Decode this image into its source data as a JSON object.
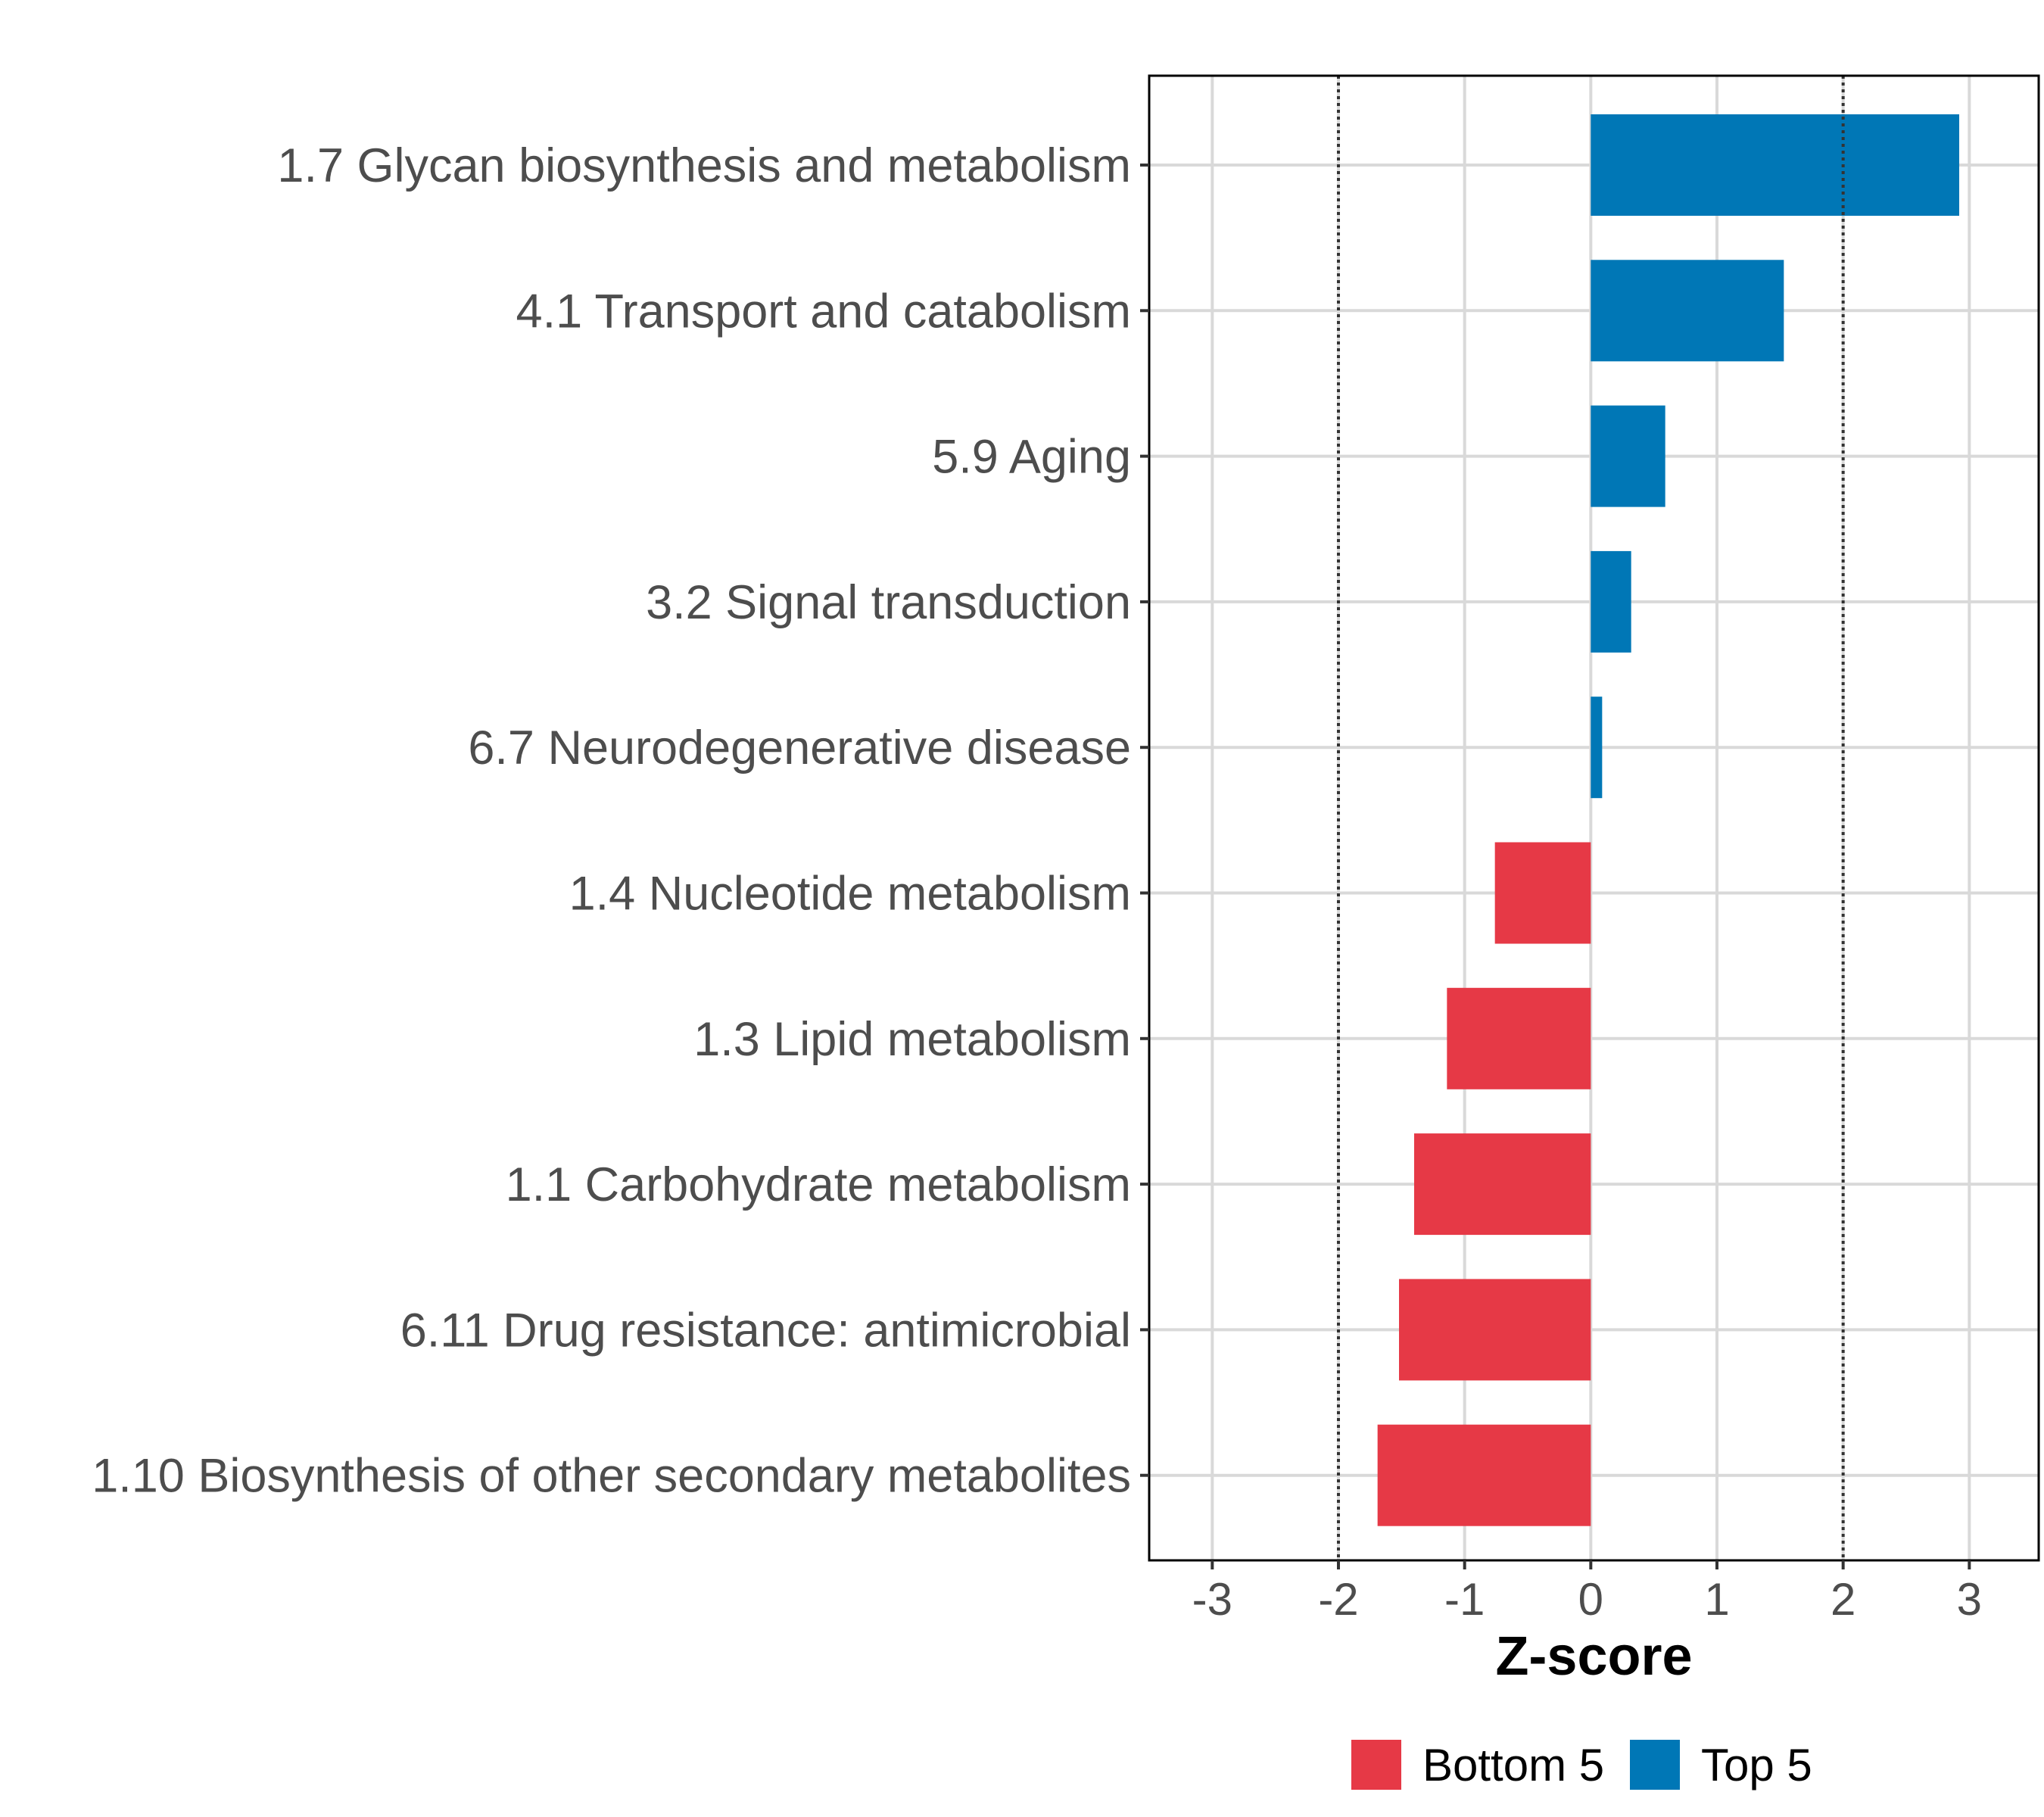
{
  "chart_data": {
    "type": "bar",
    "orientation": "horizontal",
    "categories": [
      "1.7 Glycan biosynthesis and metabolism",
      "4.1 Transport and catabolism",
      "5.9 Aging",
      "3.2 Signal transduction",
      "6.7 Neurodegenerative disease",
      "1.4 Nucleotide metabolism",
      "1.3 Lipid metabolism",
      "1.1 Carbohydrate metabolism",
      "6.11 Drug resistance: antimicrobial",
      "1.10 Biosynthesis of other secondary metabolites"
    ],
    "values": [
      2.92,
      1.53,
      0.59,
      0.32,
      0.09,
      -0.76,
      -1.14,
      -1.4,
      -1.52,
      -1.69
    ],
    "groups": [
      "Top 5",
      "Top 5",
      "Top 5",
      "Top 5",
      "Top 5",
      "Bottom 5",
      "Bottom 5",
      "Bottom 5",
      "Bottom 5",
      "Bottom 5"
    ],
    "xlabel": "Z-score",
    "ylabel": "",
    "xlim": [
      -3.5,
      3.55
    ],
    "xticks": [
      "-3",
      "-2",
      "-1",
      "0",
      "1",
      "2",
      "3"
    ],
    "reference_lines": [
      -2,
      2
    ],
    "grid": true,
    "legend": {
      "position": "bottom",
      "items": [
        {
          "label": "Bottom 5",
          "color": "#E63946"
        },
        {
          "label": "Top 5",
          "color": "#0077B6"
        }
      ]
    },
    "colors": {
      "Top 5": "#0077B6",
      "Bottom 5": "#E63946"
    }
  }
}
